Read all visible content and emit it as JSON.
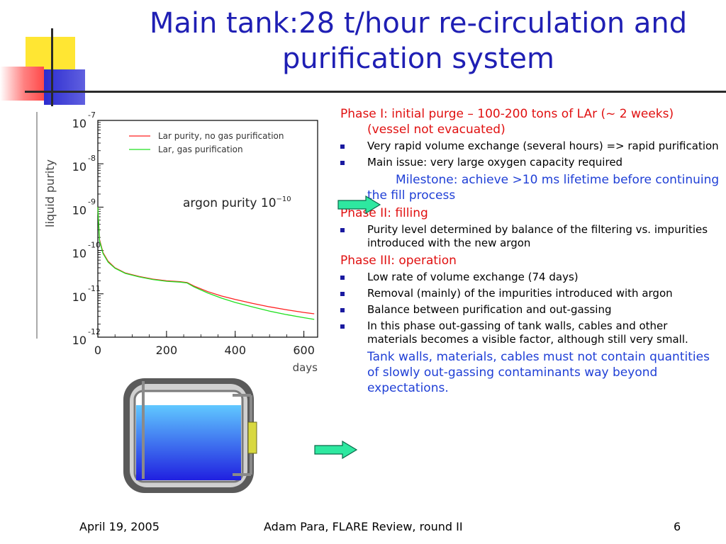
{
  "slide": {
    "title_line1": "Main tank:28 t/hour re-circulation and",
    "title_line2": "purification system",
    "footer": {
      "date": "April 19, 2005",
      "center": "Adam Para, FLARE Review, round II",
      "page": "6"
    }
  },
  "bullets": {
    "phase1": "Phase I: initial purge – 100-200 tons of LAr (~ 2 weeks) (vessel not evacuated)",
    "phase1_items": [
      "Very rapid volume exchange (several hours) => rapid purification",
      "Main issue: very large oxygen capacity required"
    ],
    "milestone": "Milestone: achieve >10 ms lifetime before continuing the fill process",
    "phase2": "Phase II: filling",
    "phase2_items": [
      "Purity level determined by balance of the filtering vs. impurities introduced with the new argon"
    ],
    "phase3": "Phase III: operation",
    "phase3_items": [
      "Low rate of volume exchange (74 days)",
      "Removal (mainly) of the impurities introduced with argon",
      "Balance between purification and out-gassing",
      "In this phase out-gassing of tank walls, cables and other materials becomes  a visible factor, although still very small."
    ],
    "conclusion": "Tank walls, materials, cables must not  contain quantities of slowly out-gassing contaminants way beyond expectations."
  },
  "colors": {
    "title": "#1f1fb4",
    "phase": "#e01010",
    "milestone": "#1f3fd6",
    "arrow": "#2ee8a0",
    "series_red": "#ff2020",
    "series_green": "#20e020"
  },
  "chart_data": {
    "type": "line",
    "ylabel": "liquid purity",
    "xlabel": "days",
    "annotation": "argon purity 10",
    "annotation_exp": "−10",
    "log_y": true,
    "xlim": [
      0,
      640
    ],
    "ylim_exp": [
      -12,
      -7
    ],
    "x_ticks": [
      "0",
      "200",
      "400",
      "600"
    ],
    "x_tick_values": [
      0,
      200,
      400,
      600
    ],
    "y_ticks": [
      {
        "base": "10",
        "exp": "-7"
      },
      {
        "base": "10",
        "exp": "-8"
      },
      {
        "base": "10",
        "exp": "-9"
      },
      {
        "base": "10",
        "exp": "-10"
      },
      {
        "base": "10",
        "exp": "-11"
      },
      {
        "base": "10",
        "exp": "-12"
      }
    ],
    "series": [
      {
        "name": "Lar purity, no gas purification",
        "color": "#ff2020",
        "x": [
          0,
          5,
          15,
          30,
          50,
          80,
          120,
          160,
          200,
          240,
          260,
          280,
          320,
          360,
          400,
          450,
          500,
          550,
          600,
          630
        ],
        "log_y": [
          -9.0,
          -9.75,
          -10.05,
          -10.25,
          -10.4,
          -10.52,
          -10.6,
          -10.66,
          -10.7,
          -10.72,
          -10.74,
          -10.82,
          -10.95,
          -11.05,
          -11.13,
          -11.22,
          -11.3,
          -11.37,
          -11.43,
          -11.46
        ]
      },
      {
        "name": "Lar, gas purification",
        "color": "#20e020",
        "x": [
          0,
          5,
          15,
          30,
          50,
          80,
          120,
          160,
          200,
          240,
          260,
          280,
          320,
          360,
          400,
          450,
          500,
          550,
          600,
          630
        ],
        "log_y": [
          -9.0,
          -9.78,
          -10.07,
          -10.27,
          -10.41,
          -10.53,
          -10.61,
          -10.67,
          -10.71,
          -10.73,
          -10.75,
          -10.84,
          -10.98,
          -11.1,
          -11.2,
          -11.3,
          -11.4,
          -11.48,
          -11.55,
          -11.59
        ]
      }
    ]
  }
}
